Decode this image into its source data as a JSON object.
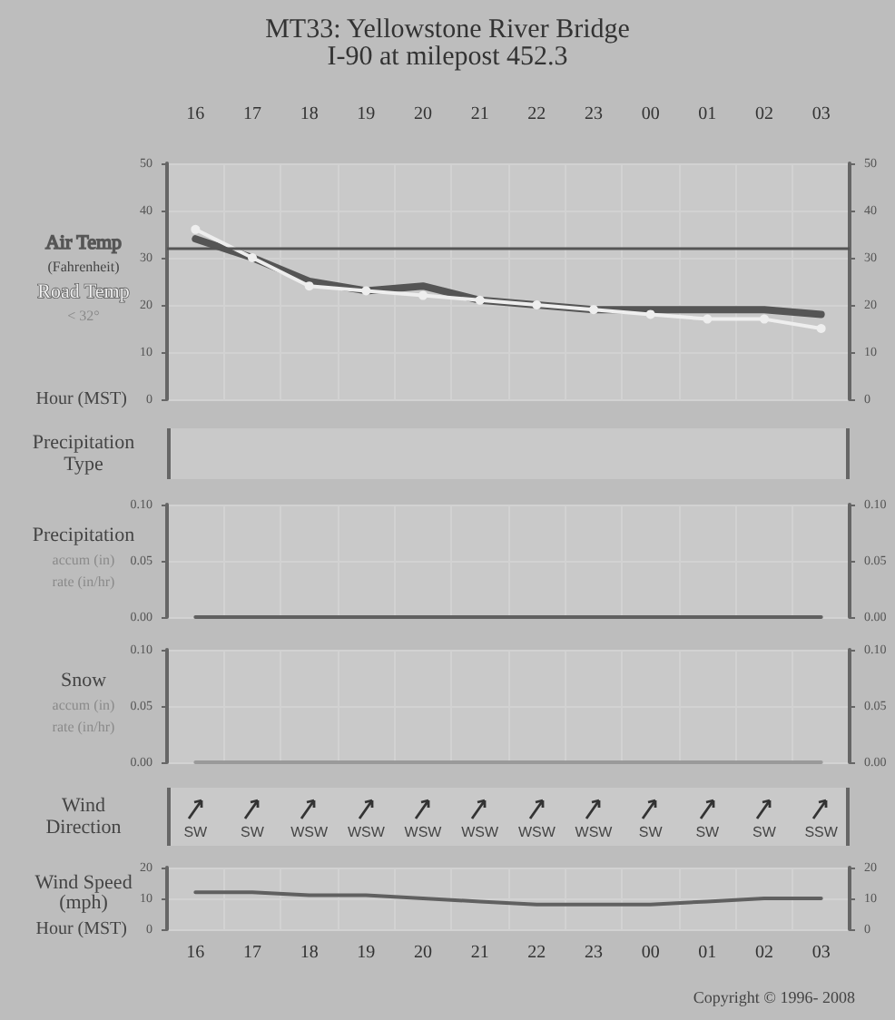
{
  "chart_data": [
    {
      "type": "line",
      "title": "MT33: Yellowstone River Bridge",
      "subtitle": "I-90 at milepost 452.3",
      "xlabel": "Hour (MST)",
      "ylabel": "(Fahrenheit)",
      "categories": [
        "16",
        "17",
        "18",
        "19",
        "20",
        "21",
        "22",
        "23",
        "00",
        "01",
        "02",
        "03"
      ],
      "series": [
        {
          "name": "Air Temp",
          "color": "#555555",
          "marker": "none",
          "values": [
            34,
            30,
            25,
            23,
            24,
            21,
            20,
            19,
            19,
            19,
            19,
            18
          ]
        },
        {
          "name": "Road Temp",
          "color": "#eeeeee",
          "marker": "circle",
          "values": [
            36,
            30,
            24,
            23,
            22,
            21,
            20,
            19,
            18,
            17,
            17,
            15
          ]
        }
      ],
      "ylim": [
        0,
        50
      ],
      "yticks": [
        0,
        10,
        20,
        30,
        40,
        50
      ],
      "y2lim": [
        0,
        50
      ],
      "y2ticks": [
        0,
        10,
        20,
        30,
        40,
        50
      ],
      "ref_lines": [
        {
          "axis": "y",
          "value": 32,
          "color": "#555555"
        }
      ],
      "annotations": [
        "< 32°"
      ],
      "grid": true,
      "legend": false
    },
    {
      "type": "other",
      "ylabel": "Precipitation Type"
    },
    {
      "type": "line",
      "ylabel": "Precipitation",
      "annotations": [
        "accum (in)",
        "rate (in/hr)"
      ],
      "categories": [
        "16",
        "17",
        "18",
        "19",
        "20",
        "21",
        "22",
        "23",
        "00",
        "01",
        "02",
        "03"
      ],
      "series": [
        {
          "color": "#606060",
          "values": [
            0,
            0,
            0,
            0,
            0,
            0,
            0,
            0,
            0,
            0,
            0,
            0
          ]
        }
      ],
      "ylim": [
        0,
        0.1
      ],
      "yticks": [
        {
          "value": 0,
          "label": "0.00"
        },
        {
          "value": 0.05,
          "label": "0.05"
        },
        {
          "value": 0.1,
          "label": "0.10"
        }
      ],
      "y2lim": [
        0,
        0.1
      ],
      "y2ticks": [
        {
          "value": 0,
          "label": "0.00"
        },
        {
          "value": 0.05,
          "label": "0.05"
        },
        {
          "value": 0.1,
          "label": "0.10"
        }
      ],
      "tick_labels": "y",
      "grid": true
    },
    {
      "type": "line",
      "ylabel": "Snow",
      "annotations": [
        "accum (in)",
        "rate (in/hr)"
      ],
      "categories": [
        "16",
        "17",
        "18",
        "19",
        "20",
        "21",
        "22",
        "23",
        "00",
        "01",
        "02",
        "03"
      ],
      "series": [
        {
          "color": "#9a9a9a",
          "values": [
            0,
            0,
            0,
            0,
            0,
            0,
            0,
            0,
            0,
            0,
            0,
            0
          ]
        }
      ],
      "ylim": [
        0,
        0.1
      ],
      "yticks": [
        {
          "value": 0,
          "label": "0.00"
        },
        {
          "value": 0.05,
          "label": "0.05"
        },
        {
          "value": 0.1,
          "label": "0.10"
        }
      ],
      "y2lim": [
        0,
        0.1
      ],
      "y2ticks": [
        {
          "value": 0,
          "label": "0.00"
        },
        {
          "value": 0.05,
          "label": "0.05"
        },
        {
          "value": 0.1,
          "label": "0.10"
        }
      ],
      "tick_labels": "y",
      "grid": true
    },
    {
      "type": "other",
      "ylabel": "Wind Direction",
      "categories": [
        "SW",
        "SW",
        "WSW",
        "WSW",
        "WSW",
        "WSW",
        "WSW",
        "WSW",
        "SW",
        "SW",
        "SW",
        "SSW"
      ]
    },
    {
      "type": "line",
      "ylabel": "Wind Speed (mph)",
      "xlabel": "Hour (MST)",
      "categories": [
        "16",
        "17",
        "18",
        "19",
        "20",
        "21",
        "22",
        "23",
        "00",
        "01",
        "02",
        "03"
      ],
      "series": [
        {
          "color": "#606060",
          "values": [
            12,
            12,
            11,
            11,
            10,
            9,
            8,
            8,
            8,
            9,
            10,
            10
          ]
        }
      ],
      "ylim": [
        0,
        20
      ],
      "yticks": [
        0,
        10,
        20
      ],
      "y2lim": [
        0,
        20
      ],
      "y2ticks": [
        0,
        10,
        20
      ],
      "grid": true,
      "annotations": [
        "Copyright © 1996- 2008"
      ]
    }
  ]
}
